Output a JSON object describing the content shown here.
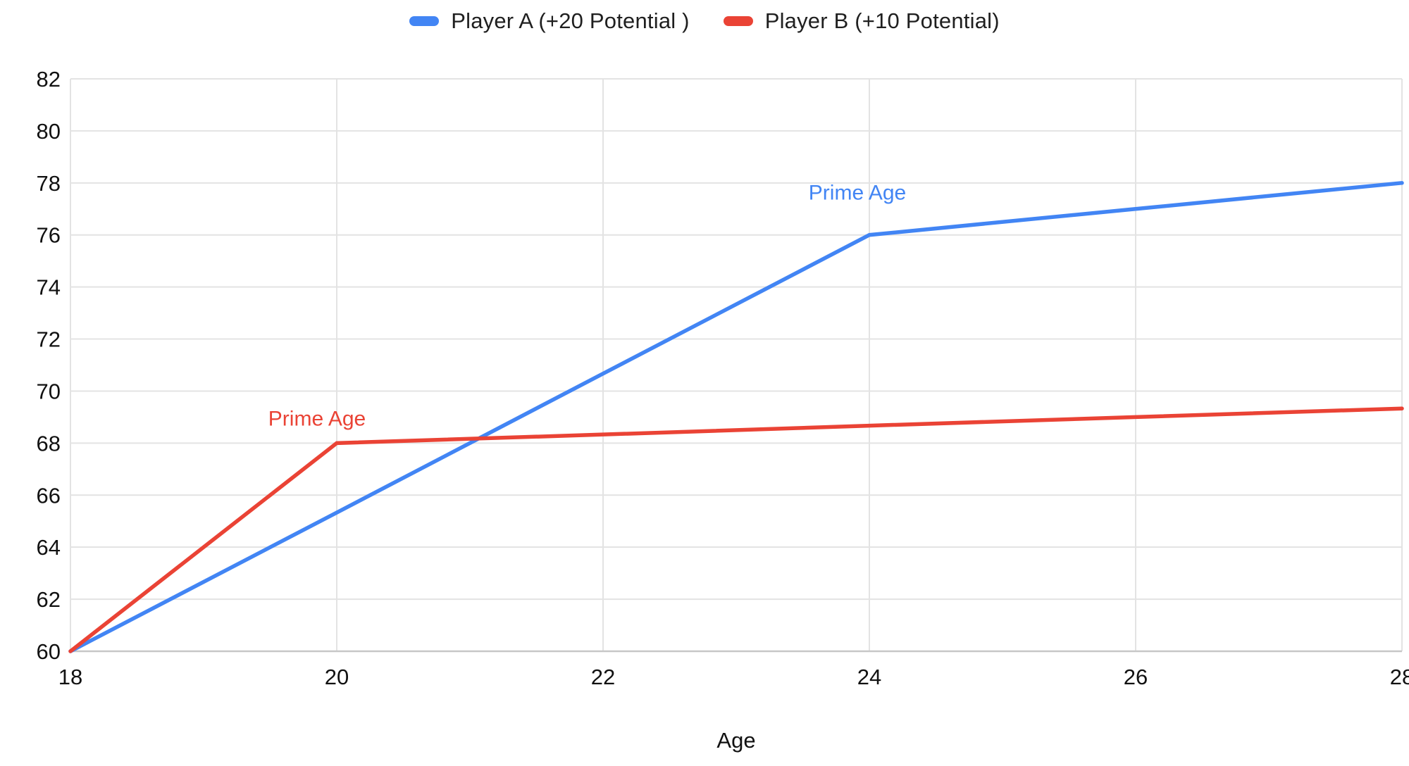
{
  "legend": {
    "items": [
      {
        "label": "Player A (+20 Potential )",
        "color": "#4285F4"
      },
      {
        "label": "Player B (+10 Potential)",
        "color": "#EA4335"
      }
    ]
  },
  "axes": {
    "x_label": "Age",
    "x_ticks": [
      18,
      20,
      22,
      24,
      26,
      28
    ],
    "y_ticks": [
      60,
      62,
      64,
      66,
      68,
      70,
      72,
      74,
      76,
      78,
      80,
      82
    ]
  },
  "chart_data": {
    "type": "line",
    "title": "",
    "xlabel": "Age",
    "ylabel": "",
    "xlim": [
      18,
      28
    ],
    "ylim": [
      60,
      82
    ],
    "grid": true,
    "legend_position": "top",
    "x": [
      18,
      20,
      22,
      24,
      26,
      28
    ],
    "series": [
      {
        "name": "Player A (+20 Potential )",
        "color": "#4285F4",
        "values": [
          60,
          65.33,
          70.67,
          76,
          77,
          78
        ],
        "annotation": {
          "text": "Prime Age",
          "at_x": 24,
          "at_y": 76,
          "dx": -17,
          "dy": -50
        }
      },
      {
        "name": "Player B (+10 Potential)",
        "color": "#EA4335",
        "values": [
          60,
          68,
          68.33,
          68.67,
          69,
          69.33
        ],
        "annotation": {
          "text": "Prime Age",
          "at_x": 20,
          "at_y": 68,
          "dx": -28,
          "dy": -25
        }
      }
    ]
  },
  "colors": {
    "grid": "#e3e3e3",
    "axis_line": "#c7c7c7",
    "tick_text": "#111111"
  }
}
